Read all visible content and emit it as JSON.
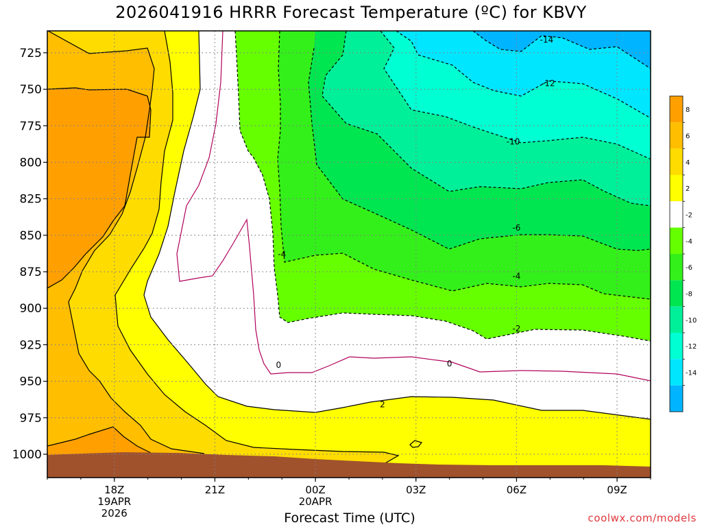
{
  "chart_data": {
    "type": "heatmap",
    "title": "2026041916 HRRR Forecast Temperature (ºC) for KBVY",
    "xlabel": "Forecast Time (UTC)",
    "ylabel": "",
    "x_ticks": [
      {
        "label": "18Z",
        "sub": [
          "19APR",
          "2026"
        ],
        "hours": 2
      },
      {
        "label": "21Z",
        "sub": [],
        "hours": 5
      },
      {
        "label": "00Z",
        "sub": [
          "20APR"
        ],
        "hours": 8
      },
      {
        "label": "03Z",
        "sub": [],
        "hours": 11
      },
      {
        "label": "06Z",
        "sub": [],
        "hours": 14
      },
      {
        "label": "09Z",
        "sub": [],
        "hours": 17
      }
    ],
    "xlim_hours": [
      0,
      18
    ],
    "y_ticks": [
      725,
      750,
      775,
      800,
      825,
      850,
      875,
      900,
      925,
      950,
      975,
      1000
    ],
    "ylim": [
      1016,
      710
    ],
    "y_scale": "linear-pressure (hPa)",
    "grid": true,
    "colorbar": {
      "placement": "right",
      "labels": [
        "8",
        "6",
        "4",
        "2",
        "-2",
        "-4",
        "-6",
        "-8",
        "-10",
        "-12",
        "-14"
      ],
      "bins": [
        {
          "from": 10,
          "to": 8,
          "color": "#ffa000"
        },
        {
          "from": 8,
          "to": 6,
          "color": "#ffbe00"
        },
        {
          "from": 6,
          "to": 4,
          "color": "#ffdc00"
        },
        {
          "from": 4,
          "to": 2,
          "color": "#ffff00"
        },
        {
          "from": 2,
          "to": -2,
          "color": "#ffffff"
        },
        {
          "from": -2,
          "to": -4,
          "color": "#66ff00"
        },
        {
          "from": -4,
          "to": -6,
          "color": "#33f01a"
        },
        {
          "from": -6,
          "to": -8,
          "color": "#00e650"
        },
        {
          "from": -8,
          "to": -10,
          "color": "#00f09a"
        },
        {
          "from": -10,
          "to": -12,
          "color": "#00ffd2"
        },
        {
          "from": -12,
          "to": -14,
          "color": "#00e6ff"
        },
        {
          "from": -14,
          "to": -16,
          "color": "#00b4ff"
        }
      ]
    },
    "contour_labels": [
      {
        "text": "-14",
        "hours": 14.9,
        "p": 716
      },
      {
        "text": "-12",
        "hours": 14.95,
        "p": 746
      },
      {
        "text": "-10",
        "hours": 13.9,
        "p": 786
      },
      {
        "text": "-6",
        "hours": 14.0,
        "p": 845
      },
      {
        "text": "-4",
        "hours": 7.0,
        "p": 863
      },
      {
        "text": "-4",
        "hours": 14.0,
        "p": 878
      },
      {
        "text": "-2",
        "hours": 14.0,
        "p": 914
      },
      {
        "text": "0",
        "hours": 6.9,
        "p": 939
      },
      {
        "text": "0",
        "hours": 12.0,
        "p": 938
      },
      {
        "text": "2",
        "hours": 10.0,
        "p": 966
      }
    ]
  },
  "credit": "coolwx.com/models",
  "colors": {
    "terrain": "#a0522d",
    "contour_warm": "#000000",
    "contour_zero": "#b0005a",
    "grid": "#808080"
  }
}
